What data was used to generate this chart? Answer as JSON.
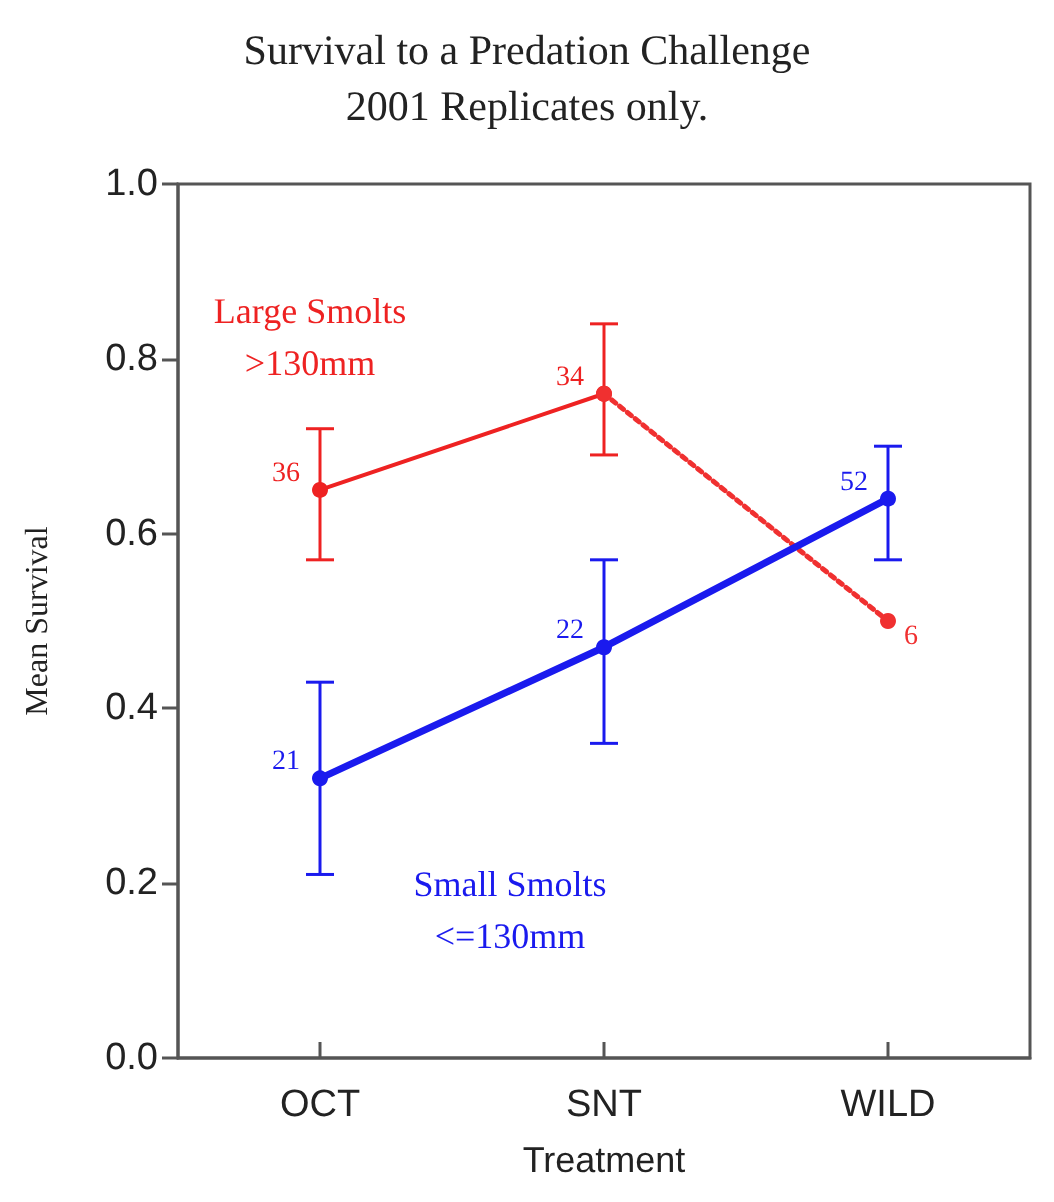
{
  "chart_data": {
    "type": "line",
    "title": "Survival to a Predation Challenge\n2001 Replicates only.",
    "xlabel": "Treatment",
    "ylabel": "Mean Survival",
    "categories": [
      "OCT",
      "SNT",
      "WILD"
    ],
    "ylim": [
      0,
      1
    ],
    "yticks": [
      {
        "value": 0,
        "label": "0.0"
      },
      0.2,
      0.4,
      0.6,
      0.8,
      {
        "value": 1,
        "label": "1.0"
      }
    ],
    "grid": false,
    "legend": false,
    "marker": "circle",
    "series": [
      {
        "name": "Large Smolts\n>130mm",
        "color": "#ee2222",
        "line_style": "solid",
        "values": [
          0.65,
          0.76,
          null
        ],
        "errors": [
          [
            0.57,
            0.72
          ],
          [
            0.69,
            0.84
          ],
          null
        ]
      },
      {
        "color": "#f03030",
        "line_style": "dotted",
        "x": [
          "SNT",
          "WILD"
        ],
        "values": [
          0.76,
          0.5
        ]
      },
      {
        "name": "Small Smolts\n<=130mm",
        "color": "#1a1aee",
        "line_style": "solid",
        "values": [
          0.32,
          0.47,
          0.64
        ],
        "errors": [
          [
            0.21,
            0.43
          ],
          [
            0.36,
            0.57
          ],
          [
            0.57,
            0.7
          ]
        ]
      }
    ],
    "annotations": [
      {
        "text": "36",
        "x": "OCT",
        "y": 0.65
      },
      {
        "text": "34",
        "x": "SNT",
        "y": 0.76
      },
      {
        "text": "6",
        "x": "WILD",
        "y": 0.5
      },
      {
        "text": "21",
        "x": "OCT",
        "y": 0.32
      },
      {
        "text": "22",
        "x": "SNT",
        "y": 0.47
      },
      {
        "text": "52",
        "x": "WILD",
        "y": 0.64
      }
    ]
  }
}
